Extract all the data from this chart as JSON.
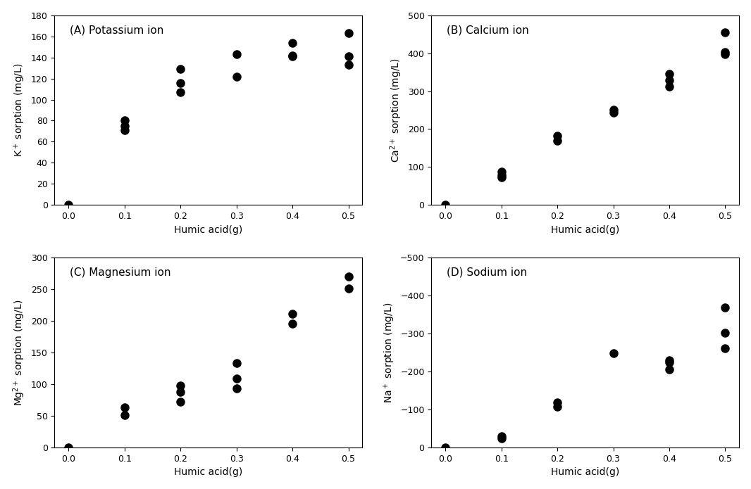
{
  "panels": [
    {
      "label": "(A) Potassium ion",
      "ylabel": "K$^+$ sorption (mg/L)",
      "ylim": [
        0,
        180
      ],
      "yticks": [
        0,
        20,
        40,
        60,
        80,
        100,
        120,
        140,
        160,
        180
      ],
      "data": {
        "x": [
          0.0,
          0.1,
          0.1,
          0.1,
          0.2,
          0.2,
          0.2,
          0.3,
          0.3,
          0.4,
          0.4,
          0.4,
          0.5,
          0.5,
          0.5
        ],
        "y": [
          0,
          80,
          75,
          71,
          129,
          116,
          107,
          143,
          122,
          154,
          142,
          141,
          163,
          141,
          133
        ]
      }
    },
    {
      "label": "(B) Calcium ion",
      "ylabel": "Ca$^{2+}$ sorption (mg/L)",
      "ylim": [
        0,
        500
      ],
      "yticks": [
        0,
        100,
        200,
        300,
        400,
        500
      ],
      "data": {
        "x": [
          0.0,
          0.1,
          0.1,
          0.1,
          0.2,
          0.2,
          0.3,
          0.3,
          0.4,
          0.4,
          0.4,
          0.5,
          0.5,
          0.5
        ],
        "y": [
          0,
          88,
          78,
          73,
          183,
          170,
          251,
          243,
          345,
          328,
          312,
          455,
          403,
          397
        ]
      }
    },
    {
      "label": "(C) Magnesium ion",
      "ylabel": "Mg$^{2+}$ sorption (mg/L)",
      "ylim": [
        0,
        300
      ],
      "yticks": [
        0,
        50,
        100,
        150,
        200,
        250,
        300
      ],
      "data": {
        "x": [
          0.0,
          0.1,
          0.1,
          0.2,
          0.2,
          0.2,
          0.3,
          0.3,
          0.3,
          0.4,
          0.4,
          0.5,
          0.5
        ],
        "y": [
          0,
          64,
          51,
          98,
          88,
          72,
          134,
          109,
          93,
          211,
          196,
          270,
          251
        ]
      }
    },
    {
      "label": "(D) Sodium ion",
      "ylabel": "Na$^+$ sorption (mg/L)",
      "ylim": [
        -500,
        0
      ],
      "yticks": [
        -500,
        -400,
        -300,
        -200,
        -100,
        0
      ],
      "invert_yaxis": true,
      "data": {
        "x": [
          0.0,
          0.1,
          0.1,
          0.2,
          0.2,
          0.3,
          0.4,
          0.4,
          0.4,
          0.5,
          0.5,
          0.5
        ],
        "y": [
          0,
          -25,
          -30,
          -108,
          -118,
          -248,
          -225,
          -230,
          -205,
          -370,
          -302,
          -262
        ]
      }
    }
  ],
  "xlabel": "Humic acid(g)",
  "xticks": [
    0.0,
    0.1,
    0.2,
    0.3,
    0.4,
    0.5
  ],
  "marker_color": "#000000",
  "marker_size": 8,
  "text_color": "#000000",
  "spine_color": "#000000",
  "background": "#ffffff",
  "tick_labelsize": 9,
  "label_fontsize": 10,
  "panel_label_fontsize": 11
}
